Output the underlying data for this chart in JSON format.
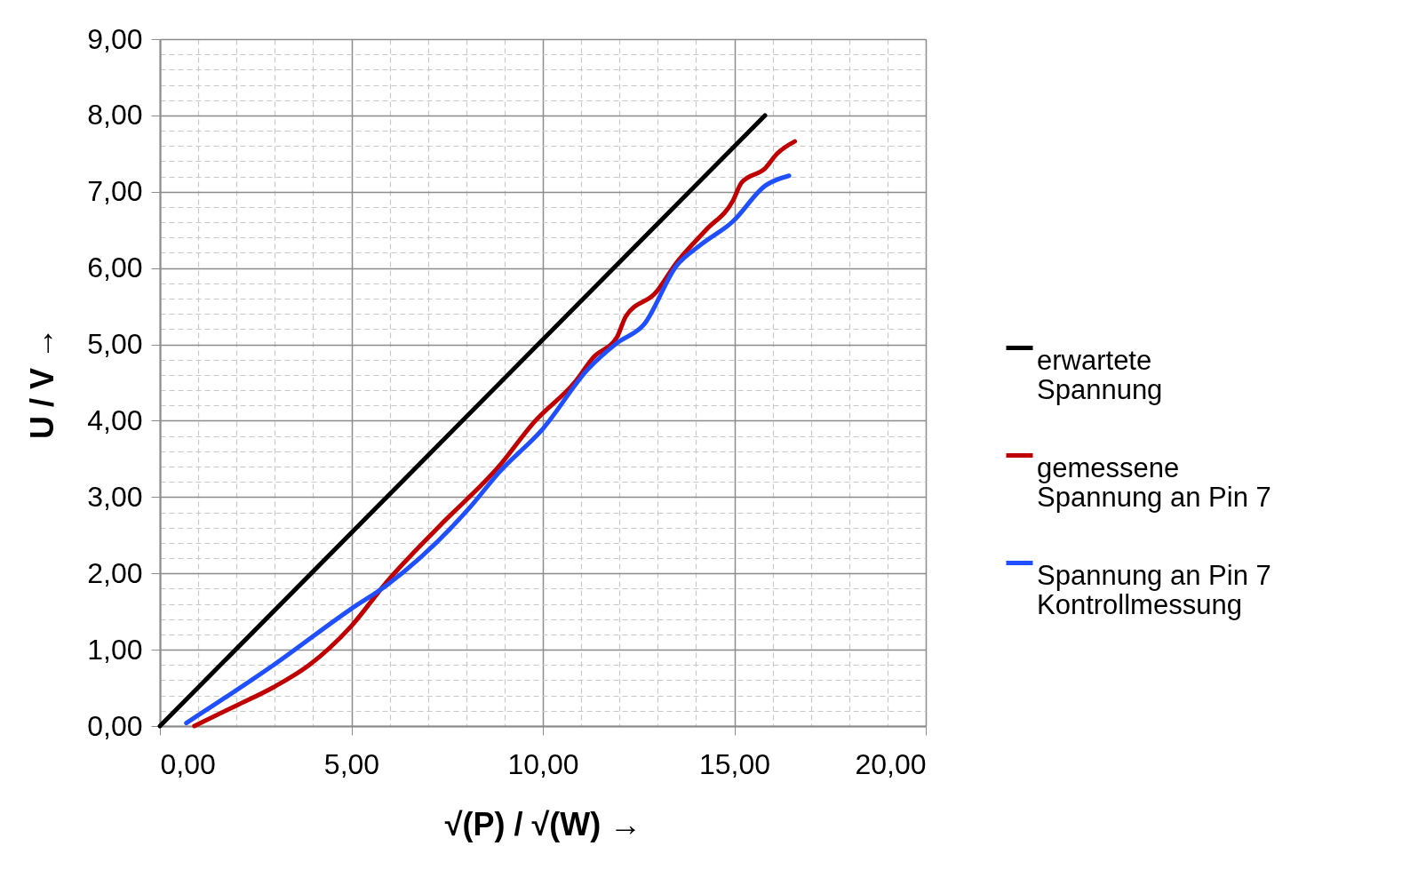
{
  "chart_data": {
    "type": "line",
    "xlabel": "√(P) / √(W) →",
    "ylabel": "U / V →",
    "xlim": [
      0,
      20
    ],
    "ylim": [
      0,
      9
    ],
    "xticks": [
      {
        "value": 0,
        "label": "0,00"
      },
      {
        "value": 1,
        "label": null
      },
      {
        "value": 2,
        "label": null
      },
      {
        "value": 3,
        "label": null
      },
      {
        "value": 4,
        "label": null
      },
      {
        "value": 5,
        "label": "5,00"
      },
      {
        "value": 6,
        "label": null
      },
      {
        "value": 7,
        "label": null
      },
      {
        "value": 8,
        "label": null
      },
      {
        "value": 9,
        "label": null
      },
      {
        "value": 10,
        "label": "10,00"
      },
      {
        "value": 11,
        "label": null
      },
      {
        "value": 12,
        "label": null
      },
      {
        "value": 13,
        "label": null
      },
      {
        "value": 14,
        "label": null
      },
      {
        "value": 15,
        "label": "15,00"
      },
      {
        "value": 16,
        "label": null
      },
      {
        "value": 17,
        "label": null
      },
      {
        "value": 18,
        "label": null
      },
      {
        "value": 19,
        "label": null
      },
      {
        "value": 20,
        "label": "20,00"
      }
    ],
    "yticks": [
      {
        "value": 0,
        "label": "0,00"
      },
      {
        "value": 0.2,
        "label": null
      },
      {
        "value": 0.4,
        "label": null
      },
      {
        "value": 0.6,
        "label": null
      },
      {
        "value": 0.8,
        "label": null
      },
      {
        "value": 1,
        "label": "1,00"
      },
      {
        "value": 1.2,
        "label": null
      },
      {
        "value": 1.4,
        "label": null
      },
      {
        "value": 1.6,
        "label": null
      },
      {
        "value": 1.8,
        "label": null
      },
      {
        "value": 2,
        "label": "2,00"
      },
      {
        "value": 2.2,
        "label": null
      },
      {
        "value": 2.4,
        "label": null
      },
      {
        "value": 2.6,
        "label": null
      },
      {
        "value": 2.8,
        "label": null
      },
      {
        "value": 3,
        "label": "3,00"
      },
      {
        "value": 3.2,
        "label": null
      },
      {
        "value": 3.4,
        "label": null
      },
      {
        "value": 3.6,
        "label": null
      },
      {
        "value": 3.8,
        "label": null
      },
      {
        "value": 4,
        "label": "4,00"
      },
      {
        "value": 4.2,
        "label": null
      },
      {
        "value": 4.4,
        "label": null
      },
      {
        "value": 4.6,
        "label": null
      },
      {
        "value": 4.8,
        "label": null
      },
      {
        "value": 5,
        "label": "5,00"
      },
      {
        "value": 5.2,
        "label": null
      },
      {
        "value": 5.4,
        "label": null
      },
      {
        "value": 5.6,
        "label": null
      },
      {
        "value": 5.8,
        "label": null
      },
      {
        "value": 6,
        "label": "6,00"
      },
      {
        "value": 6.2,
        "label": null
      },
      {
        "value": 6.4,
        "label": null
      },
      {
        "value": 6.6,
        "label": null
      },
      {
        "value": 6.8,
        "label": null
      },
      {
        "value": 7,
        "label": "7,00"
      },
      {
        "value": 7.2,
        "label": null
      },
      {
        "value": 7.4,
        "label": null
      },
      {
        "value": 7.6,
        "label": null
      },
      {
        "value": 7.8,
        "label": null
      },
      {
        "value": 8,
        "label": "8,00"
      },
      {
        "value": 8.2,
        "label": null
      },
      {
        "value": 8.4,
        "label": null
      },
      {
        "value": 8.6,
        "label": null
      },
      {
        "value": 8.8,
        "label": null
      },
      {
        "value": 9,
        "label": "9,00"
      }
    ],
    "grid": true,
    "legend": "right",
    "marker": "none",
    "line_style": "solid",
    "series": [
      {
        "name": "erwartete Spannung",
        "color": "#000000",
        "x": [
          0,
          15.8
        ],
        "values": [
          0,
          8.0
        ]
      },
      {
        "name": "gemessene Spannung an Pin 7",
        "color": "#c00000",
        "x": [
          0.9,
          1.96,
          2.97,
          3.9,
          4.98,
          5.91,
          7.3,
          8.85,
          9.77,
          10.86,
          11.32,
          11.94,
          12.17,
          12.95,
          13.49,
          14.26,
          14.96,
          15.19,
          15.81,
          16.12,
          16.58
        ],
        "values": [
          0,
          0.26,
          0.51,
          0.8,
          1.3,
          1.88,
          2.62,
          3.4,
          3.98,
          4.52,
          4.83,
          5.1,
          5.37,
          5.68,
          6.07,
          6.5,
          6.88,
          7.12,
          7.31,
          7.5,
          7.66
        ]
      },
      {
        "name": "Spannung an Pin 7 Kontrollmessung",
        "color": "#1f4fff",
        "x": [
          0.69,
          2.97,
          4.98,
          5.91,
          8.07,
          8.85,
          10.01,
          11.17,
          11.94,
          12.64,
          13.49,
          14.11,
          14.96,
          15.81,
          16.43
        ],
        "values": [
          0.04,
          0.8,
          1.53,
          1.84,
          2.85,
          3.32,
          3.9,
          4.67,
          5.02,
          5.26,
          6.03,
          6.3,
          6.61,
          7.08,
          7.21
        ]
      }
    ]
  }
}
